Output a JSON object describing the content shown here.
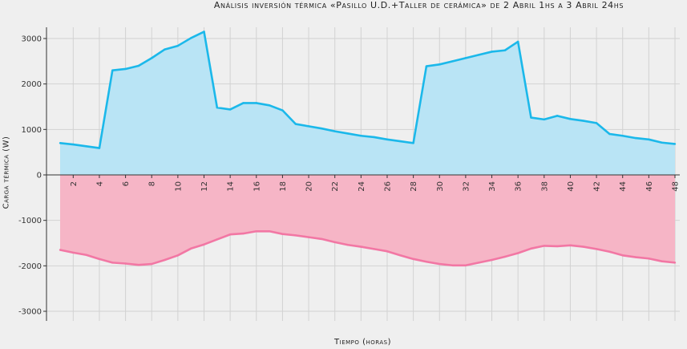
{
  "chart_data": {
    "type": "area",
    "title": "Análisis inversión térmica «Pasillo U.D.+Taller de cerámica» de 2 Abril 1hs a 3 Abril 24hs",
    "xlabel": "Tiempo (horas)",
    "ylabel": "Carga térmica (W)",
    "xlim": [
      1,
      48
    ],
    "ylim": [
      -3000,
      3000
    ],
    "x_ticks": [
      "2",
      "4",
      "6",
      "8",
      "10",
      "12",
      "14",
      "16",
      "18",
      "20",
      "22",
      "24",
      "26",
      "28",
      "30",
      "32",
      "34",
      "36",
      "38",
      "40",
      "42",
      "44",
      "46",
      "48"
    ],
    "y_ticks": [
      "3000",
      "2000",
      "1000",
      "0",
      "-1000",
      "-2000",
      "-3000"
    ],
    "grid": true,
    "x": [
      1,
      2,
      3,
      4,
      5,
      6,
      7,
      8,
      9,
      10,
      11,
      12,
      13,
      14,
      15,
      16,
      17,
      18,
      19,
      20,
      21,
      22,
      23,
      24,
      25,
      26,
      27,
      28,
      29,
      30,
      31,
      32,
      33,
      34,
      35,
      36,
      37,
      38,
      39,
      40,
      41,
      42,
      43,
      44,
      45,
      46,
      47,
      48
    ],
    "series": [
      {
        "color": "#1bb8ea",
        "fill": "#b9e4f5",
        "values": [
          700,
          670,
          630,
          590,
          2300,
          2330,
          2400,
          2570,
          2760,
          2840,
          3010,
          3150,
          1480,
          1440,
          1580,
          1580,
          1530,
          1420,
          1120,
          1070,
          1020,
          960,
          910,
          860,
          830,
          780,
          740,
          700,
          2390,
          2430,
          2500,
          2570,
          2640,
          2710,
          2740,
          2930,
          1260,
          1220,
          1300,
          1230,
          1190,
          1140,
          900,
          860,
          810,
          780,
          710,
          680
        ]
      },
      {
        "color": "#f277a4",
        "fill": "#f6b5c6",
        "values": [
          -1650,
          -1710,
          -1760,
          -1850,
          -1930,
          -1950,
          -1980,
          -1960,
          -1870,
          -1770,
          -1620,
          -1530,
          -1420,
          -1310,
          -1290,
          -1240,
          -1240,
          -1300,
          -1330,
          -1370,
          -1410,
          -1480,
          -1540,
          -1580,
          -1630,
          -1680,
          -1770,
          -1850,
          -1910,
          -1960,
          -1990,
          -1990,
          -1930,
          -1870,
          -1800,
          -1720,
          -1620,
          -1560,
          -1570,
          -1550,
          -1580,
          -1630,
          -1690,
          -1770,
          -1810,
          -1840,
          -1900,
          -1930
        ]
      }
    ]
  }
}
